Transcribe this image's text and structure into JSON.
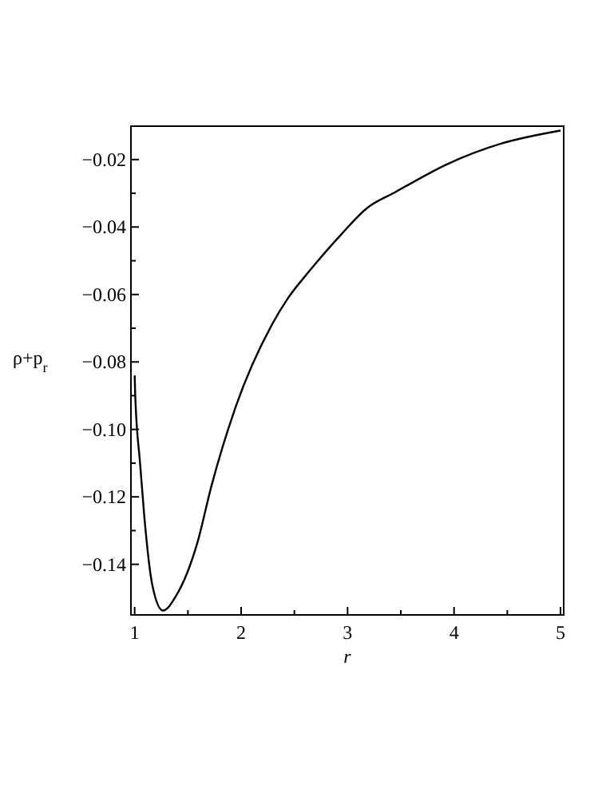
{
  "chart_data": {
    "type": "line",
    "xlabel": "r",
    "ylabel": "ρ+p$_{r}$",
    "x": [
      1.0,
      1.005,
      1.05,
      1.09,
      1.165,
      1.265,
      1.39,
      1.59,
      1.72,
      1.94,
      2.29,
      2.44,
      2.64,
      2.94,
      3.19,
      3.44,
      3.94,
      4.44,
      5.0
    ],
    "series": [
      {
        "color": "#000000",
        "values": [
          -0.084,
          -0.0895,
          -0.1098,
          -0.1256,
          -0.146,
          -0.1537,
          -0.1493,
          -0.1335,
          -0.1169,
          -0.0941,
          -0.0689,
          -0.0611,
          -0.0531,
          -0.0422,
          -0.0342,
          -0.0298,
          -0.0213,
          -0.0153,
          -0.0114
        ]
      }
    ],
    "xlim": [
      0.965,
      5.03
    ],
    "ylim": [
      -0.155,
      -0.0101
    ],
    "xticks": [
      1,
      {
        "value": 1.5,
        "label": null
      },
      2,
      {
        "value": 2.5,
        "label": null
      },
      3,
      {
        "value": 3.5,
        "label": null
      },
      4,
      {
        "value": 4.5,
        "label": null
      },
      5
    ],
    "yticks": [
      {
        "value": -0.14,
        "label": "−0.14"
      },
      {
        "value": -0.13,
        "label": null
      },
      {
        "value": -0.12,
        "label": "−0.12"
      },
      {
        "value": -0.11,
        "label": null
      },
      {
        "value": -0.1,
        "label": "−0.10"
      },
      {
        "value": -0.09,
        "label": null
      },
      {
        "value": -0.08,
        "label": "−0.08"
      },
      {
        "value": -0.07,
        "label": null
      },
      {
        "value": -0.06,
        "label": "−0.06"
      },
      {
        "value": -0.05,
        "label": null
      },
      {
        "value": -0.04,
        "label": "−0.04"
      },
      {
        "value": -0.03,
        "label": null
      },
      {
        "value": -0.02,
        "label": "−0.02"
      }
    ],
    "grid": false,
    "marker": "none",
    "line_style": "solid"
  }
}
